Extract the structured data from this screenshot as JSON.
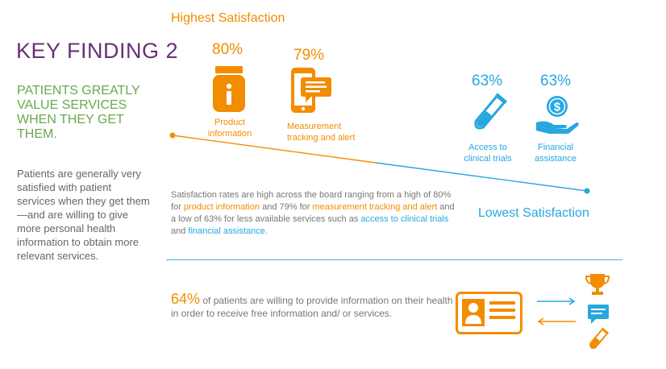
{
  "heading": {
    "title": "KEY FINDING 2",
    "subtitle": "PATIENTS GREATLY VALUE SERVICES WHEN THEY GET THEM.",
    "body": "Patients are generally very satisfied with patient services when they get them—and are willing to give more personal health information to obtain more relevant services."
  },
  "scale": {
    "high_label": "Highest Satisfaction",
    "low_label": "Lowest Satisfaction"
  },
  "services": [
    {
      "percent": "80%",
      "label_line1": "Product",
      "label_line2": "information",
      "icon": "pill-bottle-icon",
      "color": "#f28c00"
    },
    {
      "percent": "79%",
      "label_line1": "Measurement",
      "label_line2": "tracking and alert",
      "icon": "phone-message-icon",
      "color": "#f28c00"
    },
    {
      "percent": "63%",
      "label_line1": "Access to",
      "label_line2": "clinical trials",
      "icon": "test-tube-icon",
      "color": "#26a7e0"
    },
    {
      "percent": "63%",
      "label_line1": "Financial",
      "label_line2": "assistance",
      "icon": "hand-dollar-icon",
      "color": "#26a7e0"
    }
  ],
  "description": {
    "p1": "Satisfaction rates are high across the board ranging from a high of 80% for ",
    "h1": "product information",
    "p2": " and 79% for ",
    "h2": "measurement tracking and alert",
    "p3": " and a low of 63% for less available services such as ",
    "h3": "access to clinical trials",
    "p4": " and ",
    "h4": "financial assistance",
    "p5": "."
  },
  "willingness": {
    "percent": "64%",
    "text": " of patients are willing to provide information on their health in order to receive free information and/ or services."
  },
  "exchange_icons": [
    "id-card-icon",
    "arrow-right-icon",
    "arrow-left-icon",
    "trophy-icon",
    "chat-icon",
    "test-tube-icon"
  ],
  "colors": {
    "orange": "#f28c00",
    "blue": "#26a7e0",
    "purple": "#6b2f7a",
    "green": "#6aa84f"
  }
}
